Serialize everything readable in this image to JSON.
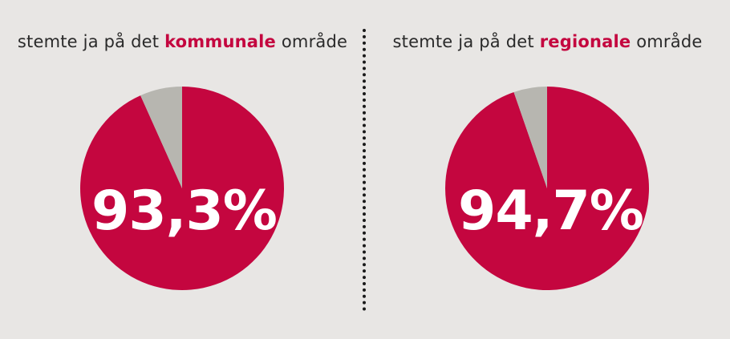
{
  "colors": {
    "background": "#e8e6e4",
    "accent": "#c4063f",
    "remainder": "#b7b6b0",
    "text": "#2a2a2a"
  },
  "chart_data": [
    {
      "type": "pie",
      "title_parts": [
        "stemte ja på det ",
        "kommunale",
        " område"
      ],
      "slices": [
        {
          "value": 93.3
        },
        {
          "value": 6.7
        }
      ],
      "value_label": "93,3%"
    },
    {
      "type": "pie",
      "title_parts": [
        "stemte ja på det ",
        "regionale",
        " område"
      ],
      "slices": [
        {
          "value": 94.7
        },
        {
          "value": 5.3
        }
      ],
      "value_label": "94,7%"
    }
  ]
}
